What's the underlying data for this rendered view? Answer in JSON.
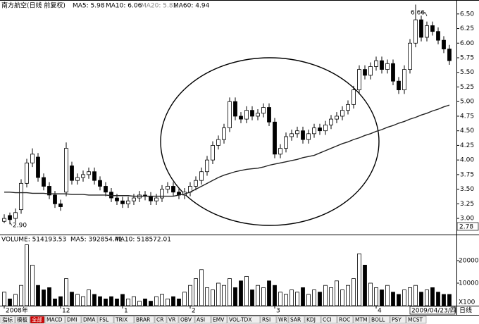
{
  "chart_data": {
    "type": "candlestick",
    "title": "南方航空(日线 前复权)",
    "legend": [
      "MA5: 5.98",
      "MA10: 6.06",
      "MA20: 5.81",
      "MA60: 4.94"
    ],
    "categories": [
      "2008年",
      null,
      null,
      null,
      null,
      null,
      null,
      null,
      null,
      null,
      "12",
      null,
      null,
      null,
      null,
      null,
      null,
      null,
      null,
      null,
      null,
      "1",
      null,
      null,
      null,
      null,
      null,
      null,
      null,
      null,
      null,
      null,
      null,
      "2",
      null,
      null,
      null,
      null,
      null,
      null,
      null,
      null,
      null,
      null,
      null,
      null,
      null,
      null,
      "3",
      null,
      null,
      null,
      null,
      null,
      null,
      null,
      null,
      null,
      null,
      null,
      null,
      null,
      null,
      null,
      null,
      null,
      "4",
      null,
      null,
      null,
      null,
      null,
      null,
      null,
      null,
      null,
      null,
      null,
      null,
      "2009/04/23/四"
    ],
    "open": [
      2.95,
      3.05,
      3.0,
      3.15,
      3.6,
      3.95,
      4.05,
      3.7,
      3.55,
      3.4,
      3.25,
      3.45,
      3.9,
      3.65,
      3.7,
      3.75,
      3.8,
      3.65,
      3.55,
      3.45,
      3.35,
      3.3,
      3.25,
      3.3,
      3.35,
      3.4,
      3.38,
      3.3,
      3.35,
      3.5,
      3.55,
      3.45,
      3.4,
      3.45,
      3.55,
      3.65,
      3.8,
      4.0,
      4.25,
      4.35,
      4.55,
      5.0,
      4.75,
      4.7,
      4.85,
      4.75,
      4.8,
      4.9,
      4.65,
      4.1,
      4.2,
      4.4,
      4.45,
      4.5,
      4.35,
      4.45,
      4.55,
      4.5,
      4.6,
      4.7,
      4.75,
      4.85,
      4.95,
      5.2,
      5.55,
      5.45,
      5.6,
      5.7,
      5.55,
      5.65,
      5.35,
      5.2,
      5.55,
      6.0,
      6.4,
      6.1,
      6.3,
      6.2,
      6.05,
      5.9
    ],
    "high": [
      3.07,
      3.1,
      3.17,
      3.67,
      4.02,
      4.2,
      4.12,
      3.77,
      3.62,
      3.47,
      3.32,
      4.3,
      3.97,
      3.77,
      3.82,
      3.87,
      3.87,
      3.72,
      3.62,
      3.52,
      3.42,
      3.37,
      3.37,
      3.42,
      3.47,
      3.47,
      3.45,
      3.42,
      3.57,
      3.62,
      3.62,
      3.52,
      3.52,
      3.62,
      3.72,
      3.87,
      4.07,
      4.32,
      4.42,
      4.62,
      5.07,
      5.07,
      4.82,
      4.92,
      4.92,
      4.87,
      4.97,
      4.97,
      4.72,
      4.27,
      4.47,
      4.52,
      4.57,
      4.57,
      4.52,
      4.62,
      4.62,
      4.67,
      4.77,
      4.82,
      4.92,
      5.02,
      5.27,
      5.62,
      5.62,
      5.67,
      5.77,
      5.77,
      5.72,
      5.72,
      5.42,
      5.62,
      6.07,
      6.66,
      6.47,
      6.37,
      6.37,
      6.27,
      6.12,
      5.97
    ],
    "low": [
      2.92,
      2.9,
      2.93,
      3.08,
      3.53,
      3.88,
      3.63,
      3.48,
      3.33,
      3.18,
      3.13,
      3.38,
      3.58,
      3.58,
      3.63,
      3.68,
      3.58,
      3.48,
      3.38,
      3.28,
      3.23,
      3.18,
      3.18,
      3.23,
      3.28,
      3.31,
      3.23,
      3.23,
      3.28,
      3.43,
      3.38,
      3.33,
      3.33,
      3.38,
      3.48,
      3.58,
      3.73,
      3.93,
      4.18,
      4.28,
      4.48,
      4.68,
      4.63,
      4.63,
      4.68,
      4.68,
      4.73,
      4.58,
      4.03,
      4.03,
      4.13,
      4.33,
      4.38,
      4.28,
      4.28,
      4.38,
      4.43,
      4.43,
      4.53,
      4.63,
      4.68,
      4.78,
      4.88,
      5.13,
      5.38,
      5.38,
      5.53,
      5.48,
      5.48,
      5.28,
      5.13,
      5.13,
      5.48,
      5.93,
      6.03,
      6.03,
      6.13,
      5.98,
      5.83,
      5.63
    ],
    "close": [
      3.0,
      2.98,
      3.1,
      3.6,
      3.95,
      4.1,
      3.7,
      3.55,
      3.4,
      3.25,
      3.2,
      4.2,
      3.65,
      3.7,
      3.75,
      3.8,
      3.65,
      3.55,
      3.45,
      3.35,
      3.3,
      3.25,
      3.3,
      3.35,
      3.4,
      3.38,
      3.3,
      3.35,
      3.5,
      3.55,
      3.45,
      3.4,
      3.45,
      3.55,
      3.65,
      3.8,
      4.0,
      4.25,
      4.35,
      4.55,
      5.0,
      4.75,
      4.7,
      4.85,
      4.75,
      4.8,
      4.9,
      4.65,
      4.1,
      4.2,
      4.4,
      4.45,
      4.5,
      4.35,
      4.45,
      4.55,
      4.5,
      4.6,
      4.7,
      4.75,
      4.85,
      4.95,
      5.2,
      5.55,
      5.45,
      5.6,
      5.7,
      5.55,
      5.65,
      5.35,
      5.2,
      5.55,
      6.0,
      6.4,
      6.1,
      6.3,
      6.2,
      6.05,
      5.9,
      5.7
    ],
    "ma60": [
      3.45,
      3.45,
      3.44,
      3.44,
      3.44,
      3.43,
      3.43,
      3.43,
      3.42,
      3.42,
      3.42,
      3.42,
      3.41,
      3.41,
      3.41,
      3.4,
      3.4,
      3.4,
      3.4,
      3.39,
      3.39,
      3.39,
      3.39,
      3.38,
      3.38,
      3.38,
      3.38,
      3.38,
      3.38,
      3.38,
      3.38,
      3.4,
      3.42,
      3.45,
      3.5,
      3.55,
      3.6,
      3.65,
      3.7,
      3.74,
      3.77,
      3.8,
      3.82,
      3.84,
      3.85,
      3.86,
      3.88,
      3.91,
      3.93,
      3.95,
      3.97,
      3.99,
      4.01,
      4.04,
      4.06,
      4.08,
      4.12,
      4.16,
      4.2,
      4.24,
      4.28,
      4.31,
      4.35,
      4.38,
      4.42,
      4.45,
      4.49,
      4.52,
      4.56,
      4.59,
      4.63,
      4.66,
      4.7,
      4.73,
      4.77,
      4.8,
      4.84,
      4.87,
      4.91,
      4.94
    ],
    "ylim": [
      2.76,
      6.57
    ],
    "yticks": [
      {
        "value": 3.0,
        "label": "3.00"
      },
      {
        "value": 3.25,
        "label": "3.25"
      },
      {
        "value": 3.5,
        "label": "3.50"
      },
      {
        "value": 3.75,
        "label": "3.75"
      },
      {
        "value": 4.0,
        "label": "4.00"
      },
      {
        "value": 4.25,
        "label": "4.25"
      },
      {
        "value": 4.5,
        "label": "4.50"
      },
      {
        "value": 4.75,
        "label": "4.75"
      },
      {
        "value": 5.0,
        "label": "5.00"
      },
      {
        "value": 5.25,
        "label": "5.25"
      },
      {
        "value": 5.5,
        "label": "5.50"
      },
      {
        "value": 5.75,
        "label": "5.75"
      },
      {
        "value": 6.0,
        "label": "6.00"
      },
      {
        "value": 6.25,
        "label": "6.25"
      },
      {
        "value": 6.5,
        "label": "6.50"
      }
    ],
    "annotations": [
      "6.66",
      "2.90"
    ],
    "axis_readout": "2.78",
    "volume_legend": [
      "VOLUME: 514193.53",
      "MA5: 392854.41",
      "MA10: 518572.01"
    ],
    "volume": [
      6000,
      3000,
      5000,
      9000,
      27000,
      18000,
      9000,
      7000,
      8000,
      3000,
      4000,
      12000,
      6000,
      5000,
      4000,
      7000,
      5000,
      4000,
      3000,
      4000,
      3000,
      5000,
      3000,
      4000,
      2000,
      3000,
      2000,
      4000,
      5000,
      3000,
      4000,
      3000,
      6000,
      9000,
      12000,
      16000,
      8000,
      7000,
      10000,
      9000,
      12000,
      8000,
      11000,
      13000,
      7000,
      9000,
      8000,
      11000,
      9000,
      6000,
      5000,
      7000,
      6000,
      8000,
      5000,
      7000,
      6000,
      9000,
      8000,
      11000,
      7000,
      9000,
      12000,
      23000,
      18000,
      10000,
      8000,
      7000,
      9000,
      6000,
      5000,
      7000,
      8000,
      9000,
      6000,
      7000,
      8000,
      6000,
      5000,
      5000
    ],
    "volume_ylim": [
      0,
      27800
    ],
    "volume_yticks": [
      10000,
      20000
    ],
    "volume_unit": "X100",
    "period_label": "日线",
    "tabs": [
      "指标",
      "模板",
      "全部",
      "MACD",
      "DMI",
      "DMA",
      "FSL",
      "TRIX",
      "BRAR",
      "CR",
      "VR",
      "OBV",
      "ASI",
      "EMV",
      "VOL-TDX",
      "RSI",
      "WR",
      "SAR",
      "KDJ",
      "CCI",
      "ROC",
      "MTM",
      "BOLL",
      "PSY",
      "MCST"
    ]
  }
}
